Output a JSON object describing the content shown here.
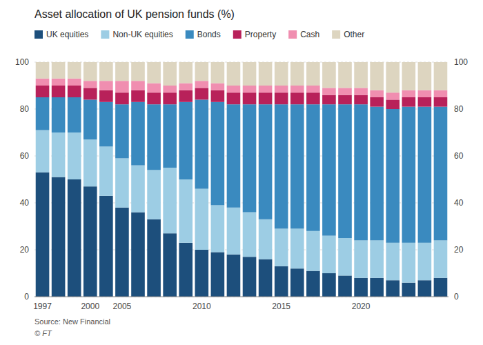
{
  "chart_data": {
    "type": "bar",
    "stacked": true,
    "title": "Asset allocation of UK pension funds (%)",
    "categories": [
      "1997",
      null,
      null,
      "2000",
      null,
      "2005",
      null,
      null,
      null,
      null,
      "2010",
      null,
      null,
      null,
      null,
      "2015",
      null,
      null,
      null,
      null,
      "2020",
      null,
      null,
      null,
      null,
      null
    ],
    "series": [
      {
        "name": "UK equities",
        "color": "#1d4f7c",
        "values": [
          53,
          51,
          50,
          47,
          43,
          38,
          36,
          33,
          27,
          23,
          20,
          19,
          18,
          17,
          16,
          13,
          12,
          11,
          10,
          9,
          8,
          8,
          7,
          6,
          7,
          8
        ]
      },
      {
        "name": "Non-UK equities",
        "color": "#9dcde4",
        "values": [
          18,
          19,
          20,
          20,
          21,
          21,
          20,
          21,
          28,
          27,
          26,
          20,
          20,
          19,
          17,
          16,
          17,
          17,
          16,
          16,
          16,
          16,
          16,
          17,
          16,
          16
        ]
      },
      {
        "name": "Bonds",
        "color": "#3a8abf",
        "values": [
          14,
          15,
          15,
          17,
          19,
          23,
          27,
          28,
          27,
          33,
          38,
          44,
          44,
          46,
          49,
          53,
          53,
          54,
          56,
          57,
          58,
          57,
          57,
          58,
          58,
          57
        ]
      },
      {
        "name": "Property",
        "color": "#b8215a",
        "values": [
          5,
          5,
          5,
          5,
          5,
          5,
          5,
          5,
          5,
          5,
          5,
          5,
          5,
          5,
          5,
          5,
          5,
          5,
          4,
          4,
          4,
          4,
          4,
          4,
          4,
          4
        ]
      },
      {
        "name": "Cash",
        "color": "#f08eb0",
        "values": [
          3,
          3,
          3,
          3,
          4,
          5,
          4,
          4,
          3,
          3,
          3,
          3,
          3,
          3,
          3,
          3,
          3,
          3,
          3,
          3,
          3,
          3,
          3,
          3,
          3,
          3
        ]
      },
      {
        "name": "Other",
        "color": "#ddd5c0",
        "values": [
          7,
          7,
          7,
          8,
          8,
          8,
          8,
          9,
          10,
          9,
          8,
          9,
          10,
          10,
          10,
          10,
          10,
          10,
          11,
          11,
          11,
          12,
          13,
          12,
          12,
          12
        ]
      }
    ],
    "ylim": [
      0,
      100
    ],
    "yticks": [
      0,
      20,
      40,
      60,
      80,
      100
    ],
    "y2lim": [
      0,
      100
    ],
    "y2ticks": [
      0,
      20,
      40,
      60,
      80,
      100
    ],
    "grid": true,
    "legend": "top",
    "annotations": [
      "Source: New Financial",
      "© FT"
    ]
  }
}
